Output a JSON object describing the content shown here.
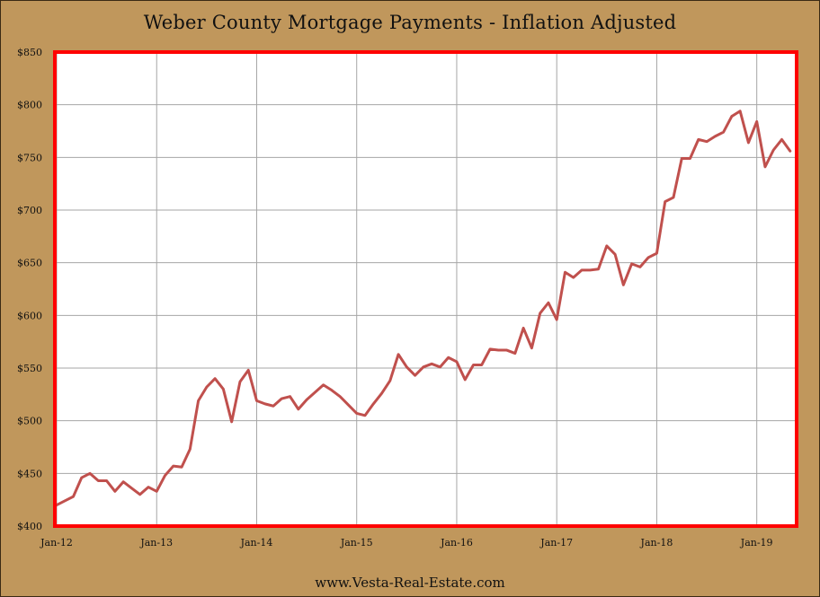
{
  "page": {
    "title": "Weber County Mortgage Payments - Inflation Adjusted",
    "footer": "www.Vesta-Real-Estate.com"
  },
  "colors": {
    "background": "#c0975c",
    "plot_background": "#ffffff",
    "plot_border": "#ff0000",
    "line": "#c0504d",
    "grid": "#a6a6a6"
  },
  "chart_data": {
    "type": "line",
    "title": "Weber County Mortgage Payments - Inflation Adjusted",
    "xlabel": "",
    "ylabel": "",
    "ylim": [
      400,
      850
    ],
    "y_ticks": [
      400,
      450,
      500,
      550,
      600,
      650,
      700,
      750,
      800,
      850
    ],
    "y_tick_labels": [
      "$400",
      "$450",
      "$500",
      "$550",
      "$600",
      "$650",
      "$700",
      "$750",
      "$800",
      "$850"
    ],
    "x_ticks": [
      "Jan-12",
      "Jan-13",
      "Jan-14",
      "Jan-15",
      "Jan-16",
      "Jan-17",
      "Jan-18",
      "Jan-19"
    ],
    "x_tick_index": [
      0,
      12,
      24,
      36,
      48,
      60,
      72,
      84
    ],
    "x_total_months": 89,
    "grid": true,
    "legend": "none",
    "series": [
      {
        "values": [
          420,
          424,
          428,
          446,
          450,
          443,
          443,
          433,
          442,
          436,
          430,
          437,
          433,
          448,
          457,
          456,
          473,
          519,
          532,
          540,
          530,
          499,
          537,
          548,
          519,
          516,
          514,
          521,
          523,
          511,
          520,
          527,
          534,
          529,
          523,
          515,
          507,
          505,
          516,
          526,
          538,
          563,
          551,
          543,
          551,
          554,
          551,
          560,
          556,
          539,
          553,
          553,
          568,
          567,
          567,
          564,
          588,
          569,
          602,
          612,
          596,
          641,
          636,
          643,
          643,
          644,
          666,
          658,
          629,
          649,
          646,
          655,
          659,
          708,
          712,
          749,
          749,
          767,
          765,
          770,
          774,
          789,
          794,
          764,
          784,
          741,
          757,
          767,
          756
        ]
      }
    ]
  }
}
